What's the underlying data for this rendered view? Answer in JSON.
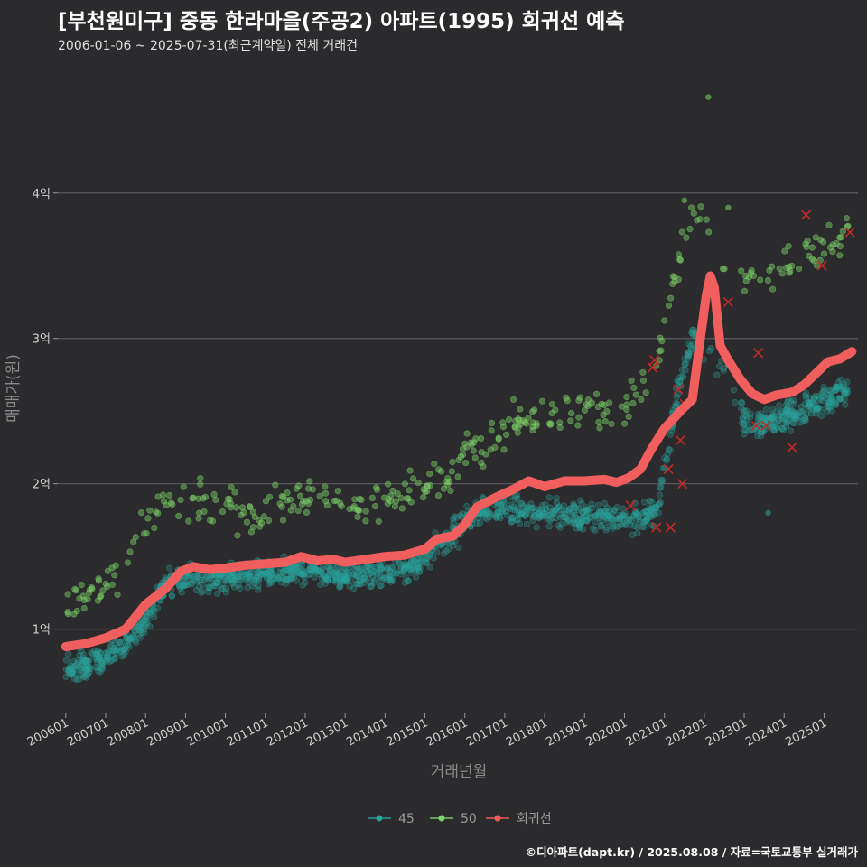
{
  "chart_data": {
    "type": "scatter",
    "title": "[부천원미구] 중동 한라마을(주공2) 아파트(1995) 회귀선 예측",
    "subtitle": "2006-01-06 ~ 2025-07-31(최근계약일) 전체 거래건",
    "xlabel": "거래년월",
    "ylabel": "매매가(원)",
    "x_range": [
      2005.8,
      2025.85
    ],
    "ylim": [
      0.42,
      4.8
    ],
    "y_unit": "억",
    "y_ticks": [
      {
        "value": 1,
        "label": "1억"
      },
      {
        "value": 2,
        "label": "2억"
      },
      {
        "value": 3,
        "label": "3억"
      },
      {
        "value": 4,
        "label": "4억"
      }
    ],
    "x_ticks": [
      {
        "value": 2006.0,
        "label": "200601"
      },
      {
        "value": 2007.0,
        "label": "200701"
      },
      {
        "value": 2008.0,
        "label": "200801"
      },
      {
        "value": 2009.0,
        "label": "200901"
      },
      {
        "value": 2010.0,
        "label": "201001"
      },
      {
        "value": 2011.0,
        "label": "201101"
      },
      {
        "value": 2012.0,
        "label": "201201"
      },
      {
        "value": 2013.0,
        "label": "201301"
      },
      {
        "value": 2014.0,
        "label": "201401"
      },
      {
        "value": 2015.0,
        "label": "201501"
      },
      {
        "value": 2016.0,
        "label": "201601"
      },
      {
        "value": 2017.0,
        "label": "201701"
      },
      {
        "value": 2018.0,
        "label": "201801"
      },
      {
        "value": 2019.0,
        "label": "201901"
      },
      {
        "value": 2020.0,
        "label": "202001"
      },
      {
        "value": 2021.0,
        "label": "202101"
      },
      {
        "value": 2022.0,
        "label": "202201"
      },
      {
        "value": 2023.0,
        "label": "202301"
      },
      {
        "value": 2024.0,
        "label": "202401"
      },
      {
        "value": 2025.0,
        "label": "202501"
      }
    ],
    "series": [
      {
        "name": "45",
        "color": "#2aa39b",
        "trend": [
          {
            "x": 2006.0,
            "y": 0.72
          },
          {
            "x": 2007.0,
            "y": 0.8
          },
          {
            "x": 2007.8,
            "y": 1.0
          },
          {
            "x": 2008.5,
            "y": 1.3
          },
          {
            "x": 2009.0,
            "y": 1.35
          },
          {
            "x": 2010.0,
            "y": 1.35
          },
          {
            "x": 2011.0,
            "y": 1.38
          },
          {
            "x": 2012.0,
            "y": 1.4
          },
          {
            "x": 2013.0,
            "y": 1.36
          },
          {
            "x": 2014.0,
            "y": 1.38
          },
          {
            "x": 2014.8,
            "y": 1.45
          },
          {
            "x": 2015.5,
            "y": 1.6
          },
          {
            "x": 2016.3,
            "y": 1.8
          },
          {
            "x": 2017.0,
            "y": 1.85
          },
          {
            "x": 2018.0,
            "y": 1.8
          },
          {
            "x": 2019.0,
            "y": 1.78
          },
          {
            "x": 2020.0,
            "y": 1.76
          },
          {
            "x": 2020.8,
            "y": 1.8
          },
          {
            "x": 2021.3,
            "y": 2.6
          },
          {
            "x": 2021.7,
            "y": 3.0
          },
          {
            "x": 2022.5,
            "y": 2.8
          },
          {
            "x": 2023.0,
            "y": 2.4
          },
          {
            "x": 2024.0,
            "y": 2.45
          },
          {
            "x": 2025.6,
            "y": 2.65
          }
        ]
      },
      {
        "name": "50",
        "color": "#7ed46a",
        "trend": [
          {
            "x": 2006.0,
            "y": 1.15
          },
          {
            "x": 2007.0,
            "y": 1.3
          },
          {
            "x": 2007.8,
            "y": 1.6
          },
          {
            "x": 2008.5,
            "y": 1.9
          },
          {
            "x": 2009.5,
            "y": 1.85
          },
          {
            "x": 2010.5,
            "y": 1.8
          },
          {
            "x": 2011.5,
            "y": 1.85
          },
          {
            "x": 2012.5,
            "y": 1.88
          },
          {
            "x": 2013.5,
            "y": 1.85
          },
          {
            "x": 2014.5,
            "y": 1.92
          },
          {
            "x": 2015.5,
            "y": 2.05
          },
          {
            "x": 2016.3,
            "y": 2.25
          },
          {
            "x": 2017.0,
            "y": 2.4
          },
          {
            "x": 2018.0,
            "y": 2.45
          },
          {
            "x": 2019.0,
            "y": 2.5
          },
          {
            "x": 2020.0,
            "y": 2.5
          },
          {
            "x": 2020.8,
            "y": 2.8
          },
          {
            "x": 2021.3,
            "y": 3.5
          },
          {
            "x": 2021.7,
            "y": 3.9
          },
          {
            "x": 2023.0,
            "y": 3.4
          },
          {
            "x": 2024.0,
            "y": 3.5
          },
          {
            "x": 2025.6,
            "y": 3.7
          }
        ]
      }
    ],
    "outliers": [
      {
        "series": "50",
        "x": 2022.1,
        "y": 4.66
      },
      {
        "series": "50",
        "x": 2021.5,
        "y": 3.95
      },
      {
        "series": "50",
        "x": 2022.6,
        "y": 3.9
      },
      {
        "series": "45",
        "x": 2023.6,
        "y": 1.8
      }
    ],
    "cancelled_marks": [
      {
        "x": 2020.75,
        "y": 2.85
      },
      {
        "x": 2020.7,
        "y": 2.8
      },
      {
        "x": 2020.8,
        "y": 1.7
      },
      {
        "x": 2021.15,
        "y": 1.7
      },
      {
        "x": 2021.35,
        "y": 2.65
      },
      {
        "x": 2021.4,
        "y": 2.3
      },
      {
        "x": 2021.45,
        "y": 2.0
      },
      {
        "x": 2021.5,
        "y": 2.55
      },
      {
        "x": 2021.1,
        "y": 2.1
      },
      {
        "x": 2020.15,
        "y": 1.85
      },
      {
        "x": 2022.6,
        "y": 3.25
      },
      {
        "x": 2023.35,
        "y": 2.9
      },
      {
        "x": 2023.3,
        "y": 2.4
      },
      {
        "x": 2023.55,
        "y": 2.4
      },
      {
        "x": 2024.2,
        "y": 2.25
      },
      {
        "x": 2024.55,
        "y": 3.85
      },
      {
        "x": 2024.95,
        "y": 3.5
      },
      {
        "x": 2025.65,
        "y": 3.73
      }
    ],
    "regression": {
      "name": "회귀선",
      "color": "#f15e5e",
      "points": [
        {
          "x": 2006.0,
          "y": 0.88
        },
        {
          "x": 2006.5,
          "y": 0.9
        },
        {
          "x": 2007.0,
          "y": 0.94
        },
        {
          "x": 2007.5,
          "y": 1.0
        },
        {
          "x": 2008.0,
          "y": 1.17
        },
        {
          "x": 2008.5,
          "y": 1.28
        },
        {
          "x": 2008.9,
          "y": 1.4
        },
        {
          "x": 2009.2,
          "y": 1.43
        },
        {
          "x": 2009.6,
          "y": 1.41
        },
        {
          "x": 2010.0,
          "y": 1.42
        },
        {
          "x": 2010.5,
          "y": 1.44
        },
        {
          "x": 2011.0,
          "y": 1.45
        },
        {
          "x": 2011.5,
          "y": 1.46
        },
        {
          "x": 2011.9,
          "y": 1.5
        },
        {
          "x": 2012.3,
          "y": 1.47
        },
        {
          "x": 2012.7,
          "y": 1.48
        },
        {
          "x": 2013.0,
          "y": 1.46
        },
        {
          "x": 2013.5,
          "y": 1.48
        },
        {
          "x": 2014.0,
          "y": 1.5
        },
        {
          "x": 2014.5,
          "y": 1.51
        },
        {
          "x": 2015.0,
          "y": 1.55
        },
        {
          "x": 2015.3,
          "y": 1.62
        },
        {
          "x": 2015.7,
          "y": 1.64
        },
        {
          "x": 2016.0,
          "y": 1.72
        },
        {
          "x": 2016.3,
          "y": 1.84
        },
        {
          "x": 2016.8,
          "y": 1.91
        },
        {
          "x": 2017.2,
          "y": 1.96
        },
        {
          "x": 2017.6,
          "y": 2.02
        },
        {
          "x": 2018.0,
          "y": 1.98
        },
        {
          "x": 2018.5,
          "y": 2.02
        },
        {
          "x": 2019.0,
          "y": 2.02
        },
        {
          "x": 2019.5,
          "y": 2.03
        },
        {
          "x": 2019.8,
          "y": 2.01
        },
        {
          "x": 2020.1,
          "y": 2.04
        },
        {
          "x": 2020.4,
          "y": 2.1
        },
        {
          "x": 2020.7,
          "y": 2.25
        },
        {
          "x": 2021.0,
          "y": 2.38
        },
        {
          "x": 2021.4,
          "y": 2.5
        },
        {
          "x": 2021.7,
          "y": 2.58
        },
        {
          "x": 2021.9,
          "y": 3.0
        },
        {
          "x": 2022.05,
          "y": 3.3
        },
        {
          "x": 2022.15,
          "y": 3.43
        },
        {
          "x": 2022.25,
          "y": 3.35
        },
        {
          "x": 2022.4,
          "y": 2.95
        },
        {
          "x": 2022.6,
          "y": 2.85
        },
        {
          "x": 2022.9,
          "y": 2.72
        },
        {
          "x": 2023.2,
          "y": 2.62
        },
        {
          "x": 2023.5,
          "y": 2.58
        },
        {
          "x": 2023.8,
          "y": 2.61
        },
        {
          "x": 2024.2,
          "y": 2.63
        },
        {
          "x": 2024.5,
          "y": 2.68
        },
        {
          "x": 2024.8,
          "y": 2.76
        },
        {
          "x": 2025.1,
          "y": 2.84
        },
        {
          "x": 2025.4,
          "y": 2.86
        },
        {
          "x": 2025.7,
          "y": 2.91
        }
      ]
    },
    "legend": {
      "placement": "bottom-center",
      "items": [
        {
          "label": "45",
          "color": "#2aa39b"
        },
        {
          "label": "50",
          "color": "#7ed46a"
        },
        {
          "label": "회귀선",
          "color": "#f15e5e"
        }
      ]
    },
    "grid": true
  },
  "footer": "©디아파트(dapt.kr) / 2025.08.08 / 자료=국토교통부 실거래가"
}
